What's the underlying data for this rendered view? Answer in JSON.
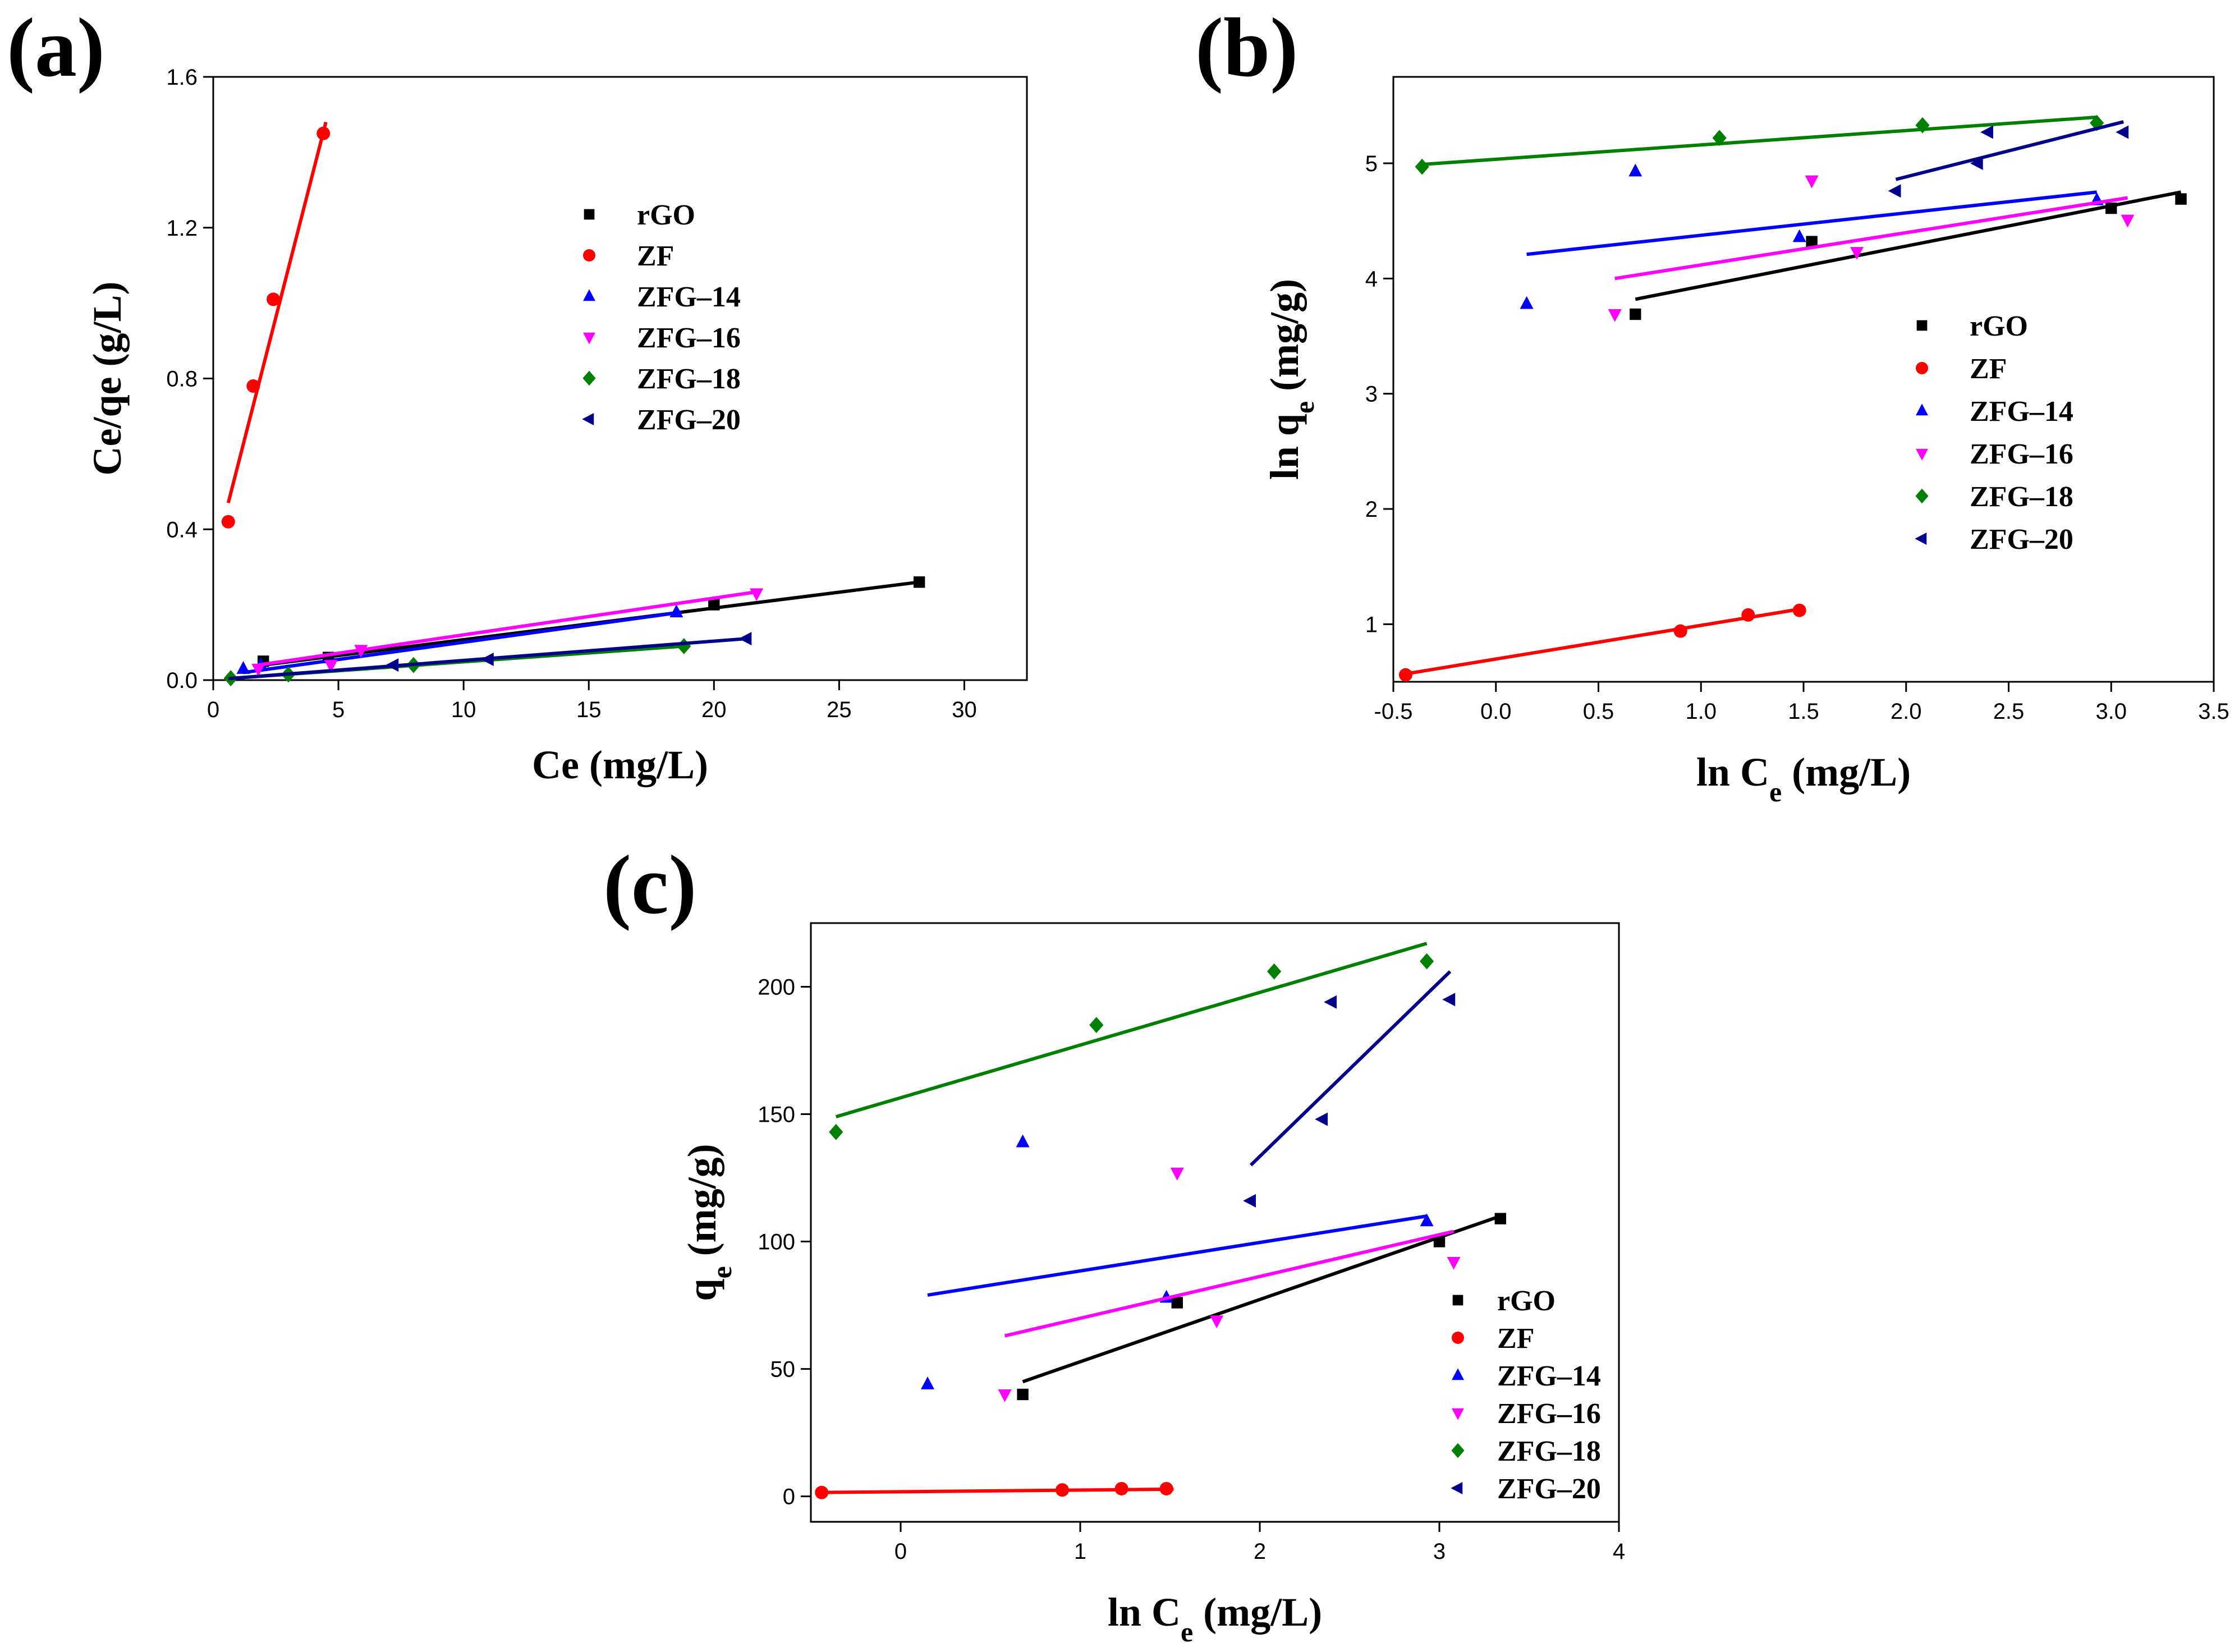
{
  "chart_data": [
    {
      "id": "a",
      "panel_label": "(a)",
      "type": "scatter",
      "xlabel": "Ce (mg/L)",
      "ylabel": "Ce/qe (g/L)",
      "xlim": [
        0,
        32.5
      ],
      "ylim": [
        0,
        1.6
      ],
      "xticks": [
        0,
        5,
        10,
        15,
        20,
        25,
        30
      ],
      "yticks": [
        0.0,
        0.4,
        0.8,
        1.2,
        1.6
      ],
      "xtick_labels": [
        "0",
        "5",
        "10",
        "15",
        "20",
        "25",
        "30"
      ],
      "ytick_labels": [
        "0.0",
        "0.4",
        "0.8",
        "1.2",
        "1.6"
      ],
      "legend_position": "top-center",
      "series": [
        {
          "name": "rGO",
          "color": "#000000",
          "marker": "square",
          "points": [
            [
              2.0,
              0.05
            ],
            [
              4.6,
              0.06
            ],
            [
              20.0,
              0.2
            ],
            [
              28.2,
              0.26
            ]
          ],
          "fit": [
            [
              2.0,
              0.04
            ],
            [
              28.2,
              0.26
            ]
          ]
        },
        {
          "name": "ZF",
          "color": "#ff0000",
          "marker": "circle",
          "points": [
            [
              0.6,
              0.42
            ],
            [
              1.6,
              0.78
            ],
            [
              2.4,
              1.01
            ],
            [
              4.4,
              1.45
            ]
          ],
          "fit": [
            [
              0.6,
              0.47
            ],
            [
              4.5,
              1.48
            ]
          ]
        },
        {
          "name": "ZFG–14",
          "color": "#0000ff",
          "marker": "triangle-up",
          "points": [
            [
              1.2,
              0.03
            ],
            [
              1.9,
              0.04
            ],
            [
              18.5,
              0.18
            ]
          ],
          "fit": [
            [
              1.2,
              0.02
            ],
            [
              18.7,
              0.18
            ]
          ]
        },
        {
          "name": "ZFG–16",
          "color": "#ff00ff",
          "marker": "triangle-down",
          "points": [
            [
              1.8,
              0.03
            ],
            [
              4.7,
              0.04
            ],
            [
              5.9,
              0.08
            ],
            [
              21.7,
              0.23
            ]
          ],
          "fit": [
            [
              1.8,
              0.04
            ],
            [
              21.8,
              0.235
            ]
          ]
        },
        {
          "name": "ZFG–18",
          "color": "#008000",
          "marker": "diamond",
          "points": [
            [
              0.7,
              0.005
            ],
            [
              3.0,
              0.015
            ],
            [
              8.0,
              0.04
            ],
            [
              18.8,
              0.09
            ]
          ],
          "fit": [
            [
              0.6,
              0.004
            ],
            [
              18.8,
              0.09
            ]
          ]
        },
        {
          "name": "ZFG–20",
          "color": "#00008b",
          "marker": "triangle-left",
          "points": [
            [
              7.2,
              0.04
            ],
            [
              11.0,
              0.055
            ],
            [
              21.3,
              0.11
            ]
          ],
          "fit": [
            [
              0.6,
              0.004
            ],
            [
              21.3,
              0.11
            ]
          ]
        }
      ]
    },
    {
      "id": "b",
      "panel_label": "(b)",
      "type": "scatter",
      "xlabel": "ln C",
      "xlabel_sub": "e",
      "xlabel_unit": " (mg/L)",
      "ylabel": "ln q",
      "ylabel_sub": "e",
      "ylabel_unit": " (mg/g)",
      "xlim": [
        -0.5,
        3.5
      ],
      "ylim": [
        0.5,
        5.75
      ],
      "xticks": [
        -0.5,
        0.0,
        0.5,
        1.0,
        1.5,
        2.0,
        2.5,
        3.0,
        3.5
      ],
      "yticks": [
        1,
        2,
        3,
        4,
        5
      ],
      "xtick_labels": [
        "-0.5",
        "0.0",
        "0.5",
        "1.0",
        "1.5",
        "2.0",
        "2.5",
        "3.0",
        "3.5"
      ],
      "ytick_labels": [
        "1",
        "2",
        "3",
        "4",
        "5"
      ],
      "legend_position": "center-right",
      "series": [
        {
          "name": "rGO",
          "color": "#000000",
          "marker": "square",
          "points": [
            [
              0.68,
              3.69
            ],
            [
              1.54,
              4.32
            ],
            [
              3.0,
              4.61
            ],
            [
              3.34,
              4.69
            ]
          ],
          "fit": [
            [
              0.68,
              3.82
            ],
            [
              3.34,
              4.75
            ]
          ]
        },
        {
          "name": "ZF",
          "color": "#ff0000",
          "marker": "circle",
          "points": [
            [
              -0.44,
              0.56
            ],
            [
              0.9,
              0.94
            ],
            [
              1.23,
              1.08
            ],
            [
              1.48,
              1.12
            ]
          ],
          "fit": [
            [
              -0.47,
              0.56
            ],
            [
              1.48,
              1.13
            ]
          ]
        },
        {
          "name": "ZFG–14",
          "color": "#0000ff",
          "marker": "triangle-up",
          "points": [
            [
              0.15,
              3.78
            ],
            [
              0.68,
              4.93
            ],
            [
              1.48,
              4.36
            ],
            [
              2.93,
              4.68
            ]
          ],
          "fit": [
            [
              0.15,
              4.21
            ],
            [
              2.93,
              4.75
            ]
          ]
        },
        {
          "name": "ZFG–16",
          "color": "#ff00ff",
          "marker": "triangle-down",
          "points": [
            [
              0.58,
              3.69
            ],
            [
              1.54,
              4.85
            ],
            [
              1.76,
              4.23
            ],
            [
              3.08,
              4.51
            ]
          ],
          "fit": [
            [
              0.58,
              4.0
            ],
            [
              3.08,
              4.7
            ]
          ]
        },
        {
          "name": "ZFG–18",
          "color": "#008000",
          "marker": "diamond",
          "points": [
            [
              -0.36,
              4.97
            ],
            [
              1.09,
              5.22
            ],
            [
              2.08,
              5.33
            ],
            [
              2.93,
              5.35
            ]
          ],
          "fit": [
            [
              -0.36,
              4.99
            ],
            [
              2.93,
              5.4
            ]
          ]
        },
        {
          "name": "ZFG–20",
          "color": "#00008b",
          "marker": "triangle-left",
          "points": [
            [
              1.95,
              4.76
            ],
            [
              2.35,
              5.0
            ],
            [
              2.4,
              5.27
            ],
            [
              3.06,
              5.27
            ]
          ],
          "fit": [
            [
              1.95,
              4.86
            ],
            [
              3.06,
              5.36
            ]
          ]
        }
      ]
    },
    {
      "id": "c",
      "panel_label": "(c)",
      "type": "scatter",
      "xlabel": "ln C",
      "xlabel_sub": "e",
      "xlabel_unit": " (mg/L)",
      "ylabel": "q",
      "ylabel_sub": "e",
      "ylabel_unit": " (mg/g)",
      "xlim": [
        -0.5,
        4.0
      ],
      "ylim": [
        -10,
        225
      ],
      "xticks": [
        0,
        1,
        2,
        3,
        4
      ],
      "yticks": [
        0,
        50,
        100,
        150,
        200
      ],
      "xtick_labels": [
        "0",
        "1",
        "2",
        "3",
        "4"
      ],
      "ytick_labels": [
        "0",
        "50",
        "100",
        "150",
        "200"
      ],
      "legend_position": "bottom-right",
      "series": [
        {
          "name": "rGO",
          "color": "#000000",
          "marker": "square",
          "points": [
            [
              0.68,
              40
            ],
            [
              1.54,
              76
            ],
            [
              3.0,
              100
            ],
            [
              3.34,
              109
            ]
          ],
          "fit": [
            [
              0.68,
              45
            ],
            [
              3.34,
              110
            ]
          ]
        },
        {
          "name": "ZF",
          "color": "#ff0000",
          "marker": "circle",
          "points": [
            [
              -0.44,
              1.5
            ],
            [
              0.9,
              2.5
            ],
            [
              1.23,
              3
            ],
            [
              1.48,
              3
            ]
          ],
          "fit": [
            [
              -0.47,
              1.5
            ],
            [
              1.52,
              2.8
            ]
          ]
        },
        {
          "name": "ZFG–14",
          "color": "#0000ff",
          "marker": "triangle-up",
          "points": [
            [
              0.15,
              44
            ],
            [
              0.68,
              139
            ],
            [
              1.48,
              78
            ],
            [
              2.93,
              108
            ]
          ],
          "fit": [
            [
              0.15,
              79
            ],
            [
              2.93,
              110
            ]
          ]
        },
        {
          "name": "ZFG–16",
          "color": "#ff00ff",
          "marker": "triangle-down",
          "points": [
            [
              0.58,
              40
            ],
            [
              1.54,
              127
            ],
            [
              1.76,
              69
            ],
            [
              3.08,
              92
            ]
          ],
          "fit": [
            [
              0.58,
              63
            ],
            [
              3.08,
              104
            ]
          ]
        },
        {
          "name": "ZFG–18",
          "color": "#008000",
          "marker": "diamond",
          "points": [
            [
              -0.36,
              143
            ],
            [
              1.09,
              185
            ],
            [
              2.08,
              206
            ],
            [
              2.93,
              210
            ]
          ],
          "fit": [
            [
              -0.36,
              149
            ],
            [
              2.93,
              217
            ]
          ]
        },
        {
          "name": "ZFG–20",
          "color": "#00008b",
          "marker": "triangle-left",
          "points": [
            [
              1.95,
              116
            ],
            [
              2.35,
              148
            ],
            [
              2.4,
              194
            ],
            [
              3.06,
              195
            ]
          ],
          "fit": [
            [
              1.95,
              130
            ],
            [
              3.06,
              206
            ]
          ]
        }
      ]
    }
  ]
}
